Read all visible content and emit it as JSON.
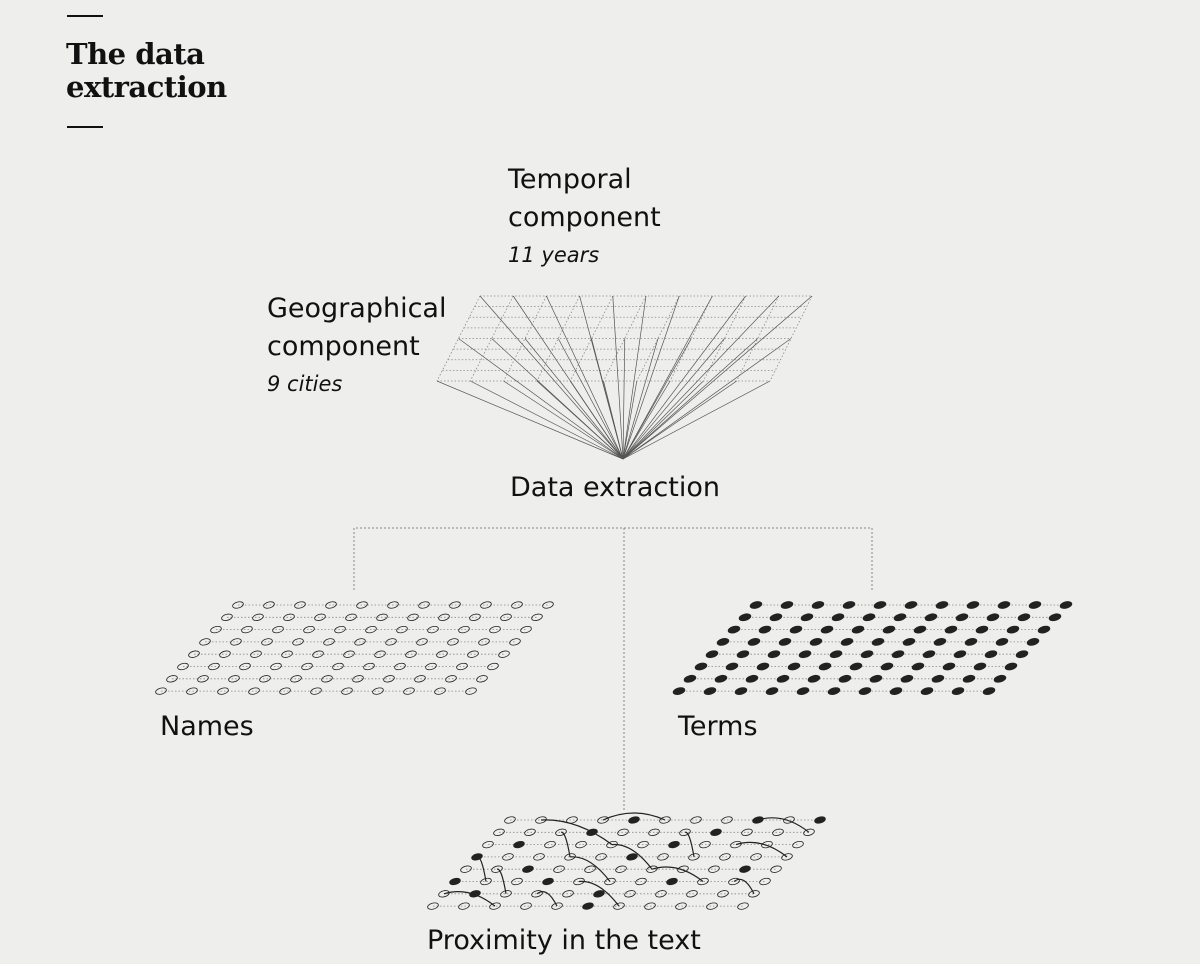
{
  "title": "The data extraction",
  "temporal": {
    "label_line1": "Temporal",
    "label_line2": "component",
    "detail": "11 years"
  },
  "geographical": {
    "label_line1": "Geographical",
    "label_line2": "component",
    "detail": "9 cities"
  },
  "extraction_label": "Data extraction",
  "outputs": {
    "names": "Names",
    "terms": "Terms",
    "proximity": "Proximity in the text"
  },
  "colors": {
    "background": "#eeefed",
    "ink": "#111111",
    "line": "#555555",
    "dotted": "#888888"
  }
}
